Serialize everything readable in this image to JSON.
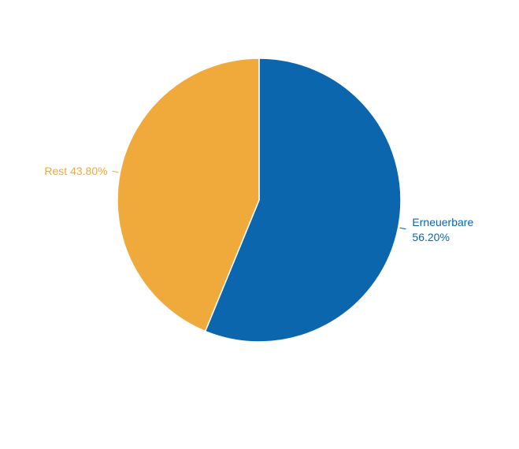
{
  "chart_data": {
    "type": "pie",
    "title": "",
    "start_angle_deg": 0,
    "direction": "clockwise",
    "slices": [
      {
        "label": "Erneuerbare",
        "value": 56.2,
        "value_label": "56.20%",
        "color": "#0b66ae"
      },
      {
        "label": "Rest",
        "value": 43.8,
        "value_label": "43.80%",
        "color": "#f0aa3c"
      }
    ]
  }
}
